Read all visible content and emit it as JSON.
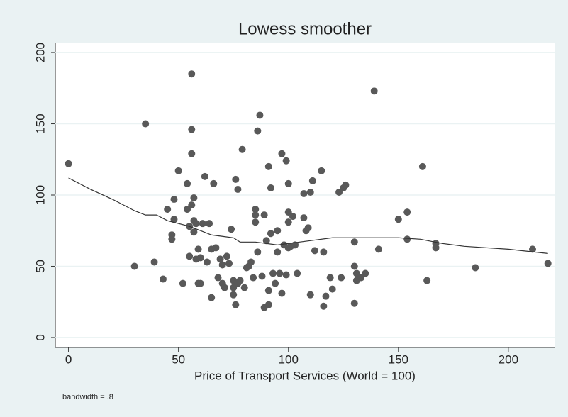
{
  "chart_data": {
    "type": "scatter",
    "title": "Lowess smoother",
    "x_label": "Price of Transport Services (World = 100)",
    "annotation": "bandwidth = .8",
    "xlim": [
      -6,
      221
    ],
    "ylim": [
      -7,
      207
    ],
    "xticks": [
      0,
      50,
      100,
      150,
      200
    ],
    "yticks": [
      0,
      50,
      100,
      150,
      200
    ],
    "grid": true,
    "series": [
      {
        "style": "markers",
        "color": "#595959",
        "x": [
          0,
          30,
          35,
          39,
          43,
          45,
          47,
          47,
          48,
          48,
          50,
          52,
          54,
          54,
          55,
          55,
          56,
          56,
          56,
          56,
          57,
          57,
          57,
          58,
          58,
          59,
          59,
          60,
          60,
          61,
          62,
          63,
          64,
          65,
          65,
          66,
          67,
          68,
          69,
          70,
          70,
          71,
          72,
          73,
          74,
          75,
          75,
          75,
          76,
          76,
          77,
          77,
          78,
          79,
          80,
          81,
          82,
          83,
          84,
          85,
          85,
          85,
          86,
          86,
          87,
          88,
          89,
          89,
          90,
          91,
          91,
          91,
          92,
          92,
          93,
          94,
          95,
          95,
          96,
          97,
          97,
          98,
          99,
          99,
          100,
          100,
          100,
          100,
          101,
          102,
          103,
          104,
          107,
          107,
          108,
          109,
          110,
          110,
          111,
          112,
          115,
          116,
          116,
          117,
          119,
          120,
          123,
          124,
          125,
          126,
          130,
          130,
          130,
          131,
          131,
          133,
          135,
          139,
          141,
          150,
          154,
          154,
          161,
          163,
          167,
          167,
          185,
          211,
          218
        ],
        "values": [
          122,
          50,
          150,
          53,
          41,
          90,
          72,
          69,
          97,
          83,
          117,
          38,
          90,
          108,
          57,
          78,
          185,
          146,
          129,
          93,
          98,
          82,
          74,
          55,
          80,
          38,
          62,
          56,
          38,
          80,
          113,
          53,
          80,
          28,
          62,
          108,
          63,
          42,
          55,
          51,
          38,
          35,
          57,
          52,
          76,
          40,
          30,
          35,
          111,
          23,
          38,
          104,
          40,
          132,
          35,
          49,
          50,
          53,
          42,
          90,
          86,
          81,
          145,
          60,
          156,
          43,
          21,
          86,
          68,
          23,
          33,
          120,
          105,
          73,
          45,
          38,
          75,
          60,
          45,
          31,
          129,
          65,
          124,
          44,
          63,
          88,
          108,
          81,
          64,
          85,
          65,
          45,
          101,
          84,
          75,
          77,
          30,
          102,
          110,
          61,
          117,
          22,
          60,
          29,
          42,
          34,
          102,
          42,
          105,
          107,
          24,
          50,
          67,
          40,
          45,
          42,
          45,
          173,
          62,
          83,
          88,
          69,
          120,
          40,
          66,
          63,
          49,
          62,
          52
        ]
      },
      {
        "style": "line",
        "color": "#333333",
        "x": [
          0,
          10,
          20,
          30,
          35,
          40,
          45,
          50,
          55,
          60,
          65,
          70,
          75,
          78,
          85,
          95,
          100,
          110,
          120,
          130,
          140,
          150,
          160,
          170,
          180,
          200,
          218
        ],
        "values": [
          112,
          104,
          97,
          89,
          86,
          86,
          82,
          80,
          78,
          75,
          72,
          71,
          70,
          67,
          67,
          65,
          66,
          68,
          70,
          70,
          70,
          70,
          69,
          66,
          64,
          62,
          59
        ]
      }
    ]
  }
}
